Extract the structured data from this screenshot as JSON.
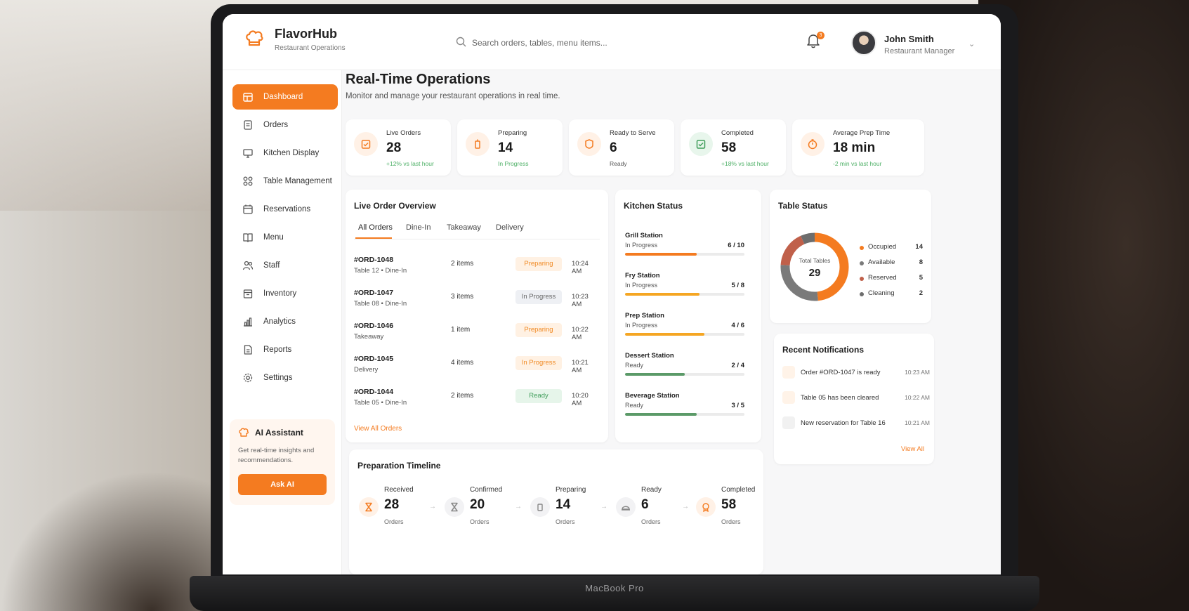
{
  "device": {
    "label": "MacBook Pro"
  },
  "app": {
    "name": "FlavorHub",
    "subtitle": "Restaurant Operations"
  },
  "search": {
    "placeholder": "Search orders, tables, menu items..."
  },
  "notifications_badge": "3",
  "user": {
    "name": "John Smith",
    "role": "Restaurant Manager"
  },
  "sidebar": {
    "items": [
      {
        "label": "Dashboard",
        "icon": "dashboard-icon",
        "active": true
      },
      {
        "label": "Orders",
        "icon": "orders-icon"
      },
      {
        "label": "Kitchen Display",
        "icon": "monitor-icon"
      },
      {
        "label": "Table Management",
        "icon": "grid-icon"
      },
      {
        "label": "Reservations",
        "icon": "calendar-icon"
      },
      {
        "label": "Menu",
        "icon": "book-icon"
      },
      {
        "label": "Staff",
        "icon": "users-icon"
      },
      {
        "label": "Inventory",
        "icon": "box-icon"
      },
      {
        "label": "Analytics",
        "icon": "chart-icon"
      },
      {
        "label": "Reports",
        "icon": "file-icon"
      },
      {
        "label": "Settings",
        "icon": "gear-icon"
      }
    ],
    "ai": {
      "title": "AI Assistant",
      "text": "Get real-time insights and recommendations.",
      "button": "Ask AI"
    }
  },
  "page": {
    "title": "Real-Time Operations",
    "subtitle": "Monitor and manage your restaurant operations in real time."
  },
  "stats": [
    {
      "label": "Live Orders",
      "value": "28",
      "note": "+12% vs last hour",
      "icon": "clipboard-icon"
    },
    {
      "label": "Preparing",
      "value": "14",
      "note": "In Progress",
      "icon": "blender-icon"
    },
    {
      "label": "Ready to Serve",
      "value": "6",
      "note": "Ready",
      "icon": "cloche-icon"
    },
    {
      "label": "Completed",
      "value": "58",
      "note": "+18% vs last hour",
      "icon": "check-icon"
    },
    {
      "label": "Average Prep Time",
      "value": "18 min",
      "note": "-2 min vs last hour",
      "icon": "timer-icon"
    }
  ],
  "live_orders": {
    "title": "Live Order Overview",
    "tabs": [
      "All Orders",
      "Dine-In",
      "Takeaway",
      "Delivery"
    ],
    "rows": [
      {
        "id": "#ORD-1048",
        "sub": "Table 12  •  Dine-In",
        "items": "2 items",
        "status": "Preparing",
        "time": "10:24 AM"
      },
      {
        "id": "#ORD-1047",
        "sub": "Table 08  •  Dine-In",
        "items": "3 items",
        "status": "In Progress",
        "time": "10:23 AM"
      },
      {
        "id": "#ORD-1046",
        "sub": "Takeaway",
        "items": "1 item",
        "status": "Preparing",
        "time": "10:22 AM"
      },
      {
        "id": "#ORD-1045",
        "sub": "Delivery",
        "items": "4 items",
        "status": "In Progress",
        "time": "10:21 AM"
      },
      {
        "id": "#ORD-1044",
        "sub": "Table 05  •  Dine-In",
        "items": "2 items",
        "status": "Ready",
        "time": "10:20 AM"
      }
    ],
    "view_all": "View All Orders"
  },
  "kitchen": {
    "title": "Kitchen Status",
    "stations": [
      {
        "name": "Grill Station",
        "status": "In Progress",
        "count": "6 / 10",
        "fraction": 0.6,
        "color": "#f47b20"
      },
      {
        "name": "Fry Station",
        "status": "In Progress",
        "count": "5 / 8",
        "fraction": 0.625,
        "color": "#f5a623"
      },
      {
        "name": "Prep Station",
        "status": "In Progress",
        "count": "4 / 6",
        "fraction": 0.667,
        "color": "#f5a623"
      },
      {
        "name": "Dessert Station",
        "status": "Ready",
        "count": "2 / 4",
        "fraction": 0.5,
        "color": "#5b9a68"
      },
      {
        "name": "Beverage Station",
        "status": "Ready",
        "count": "3 / 5",
        "fraction": 0.6,
        "color": "#5b9a68"
      }
    ]
  },
  "tables": {
    "title": "Table Status",
    "total_label": "Total Tables",
    "total": "29",
    "legend": [
      {
        "label": "Occupied",
        "value": 14,
        "color": "#f47b20"
      },
      {
        "label": "Available",
        "value": 8,
        "color": "#7a7a7a"
      },
      {
        "label": "Reserved",
        "value": 5,
        "color": "#c0604a"
      },
      {
        "label": "Cleaning",
        "value": 2,
        "color": "#6d6d6d"
      }
    ]
  },
  "notifications": {
    "title": "Recent Notifications",
    "items": [
      {
        "text": "Order #ORD-1047 is ready",
        "time": "10:23 AM"
      },
      {
        "text": "Table 05 has been cleared",
        "time": "10:22 AM"
      },
      {
        "text": "New reservation for Table 16",
        "time": "10:21 AM"
      }
    ],
    "view_all": "View All"
  },
  "timeline": {
    "title": "Preparation Timeline",
    "steps": [
      {
        "label": "Received",
        "value": "28",
        "unit": "Orders"
      },
      {
        "label": "Confirmed",
        "value": "20",
        "unit": "Orders"
      },
      {
        "label": "Preparing",
        "value": "14",
        "unit": "Orders"
      },
      {
        "label": "Ready",
        "value": "6",
        "unit": "Orders"
      },
      {
        "label": "Completed",
        "value": "58",
        "unit": "Orders"
      }
    ]
  }
}
